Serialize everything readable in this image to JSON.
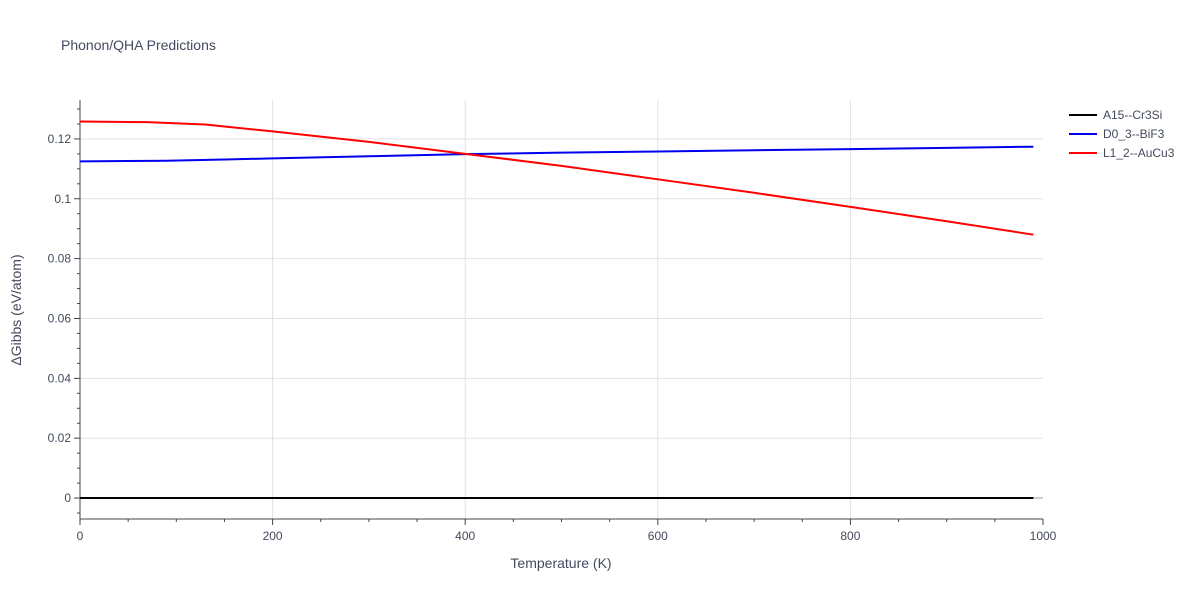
{
  "chart_data": {
    "type": "line",
    "title": "Phonon/QHA Predictions",
    "xlabel": "Temperature (K)",
    "ylabel": "ΔGibbs (eV/atom)",
    "xlim": [
      0,
      1000
    ],
    "ylim": [
      -0.007,
      0.133
    ],
    "xticks": [
      0,
      200,
      400,
      600,
      800,
      1000
    ],
    "xtick_labels": [
      "0",
      "200",
      "400",
      "600",
      "800",
      "1000"
    ],
    "yticks": [
      0,
      0.02,
      0.04,
      0.06,
      0.08,
      0.1,
      0.12
    ],
    "ytick_labels": [
      "0",
      "0.02",
      "0.04",
      "0.06",
      "0.08",
      "0.1",
      "0.12"
    ],
    "grid": true,
    "legend_position": "top-right",
    "series": [
      {
        "name": "A15--Cr3Si",
        "color": "#000000",
        "x": [
          0,
          200,
          400,
          600,
          800,
          990
        ],
        "y": [
          0,
          0,
          0,
          0,
          0,
          0
        ]
      },
      {
        "name": "D0_3--BiF3",
        "color": "#0000ee",
        "x": [
          0,
          50,
          90,
          150,
          200,
          300,
          400,
          500,
          600,
          700,
          800,
          900,
          990
        ],
        "y": [
          0.1125,
          0.1126,
          0.1127,
          0.1131,
          0.1135,
          0.1142,
          0.1149,
          0.1154,
          0.1158,
          0.1162,
          0.1166,
          0.117,
          0.1174
        ]
      },
      {
        "name": "L1_2--AuCu3",
        "color": "#ff0000",
        "x": [
          0,
          70,
          130,
          200,
          300,
          400,
          500,
          600,
          700,
          800,
          900,
          990
        ],
        "y": [
          0.1258,
          0.1256,
          0.1248,
          0.1225,
          0.119,
          0.115,
          0.111,
          0.1065,
          0.102,
          0.0973,
          0.0925,
          0.088
        ]
      }
    ]
  }
}
